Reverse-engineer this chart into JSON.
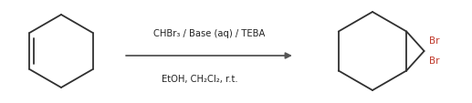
{
  "bg_color": "#ffffff",
  "line_color": "#303030",
  "br_color": "#c0392b",
  "arrow_color": "#555555",
  "reagent_line1": "CHBr₃ / Base (aq) / TEBA",
  "reagent_line2": "EtOH, CH₂Cl₂, r.t.",
  "figsize": [
    5.17,
    1.14
  ],
  "dpi": 100,
  "lw": 1.3
}
